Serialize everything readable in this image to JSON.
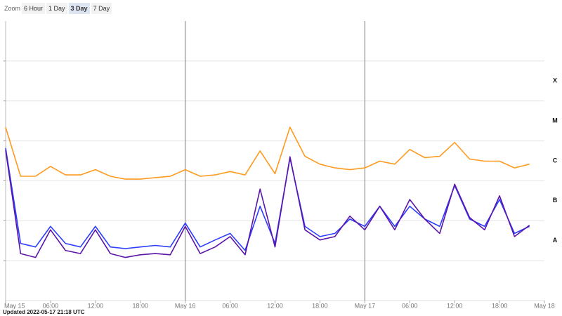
{
  "zoom": {
    "label": "Zoom",
    "buttons": [
      "6 Hour",
      "1 Day",
      "3 Day",
      "7 Day"
    ],
    "selected": 2
  },
  "chart_data": {
    "type": "line",
    "log_scale": true,
    "x": [
      "May 15 00:00",
      "May 15 02:00",
      "May 15 04:00",
      "May 15 06:00",
      "May 15 08:00",
      "May 15 10:00",
      "May 15 12:00",
      "May 15 14:00",
      "May 15 16:00",
      "May 15 18:00",
      "May 15 20:00",
      "May 15 22:00",
      "May 16 00:00",
      "May 16 02:00",
      "May 16 04:00",
      "May 16 06:00",
      "May 16 08:00",
      "May 16 10:00",
      "May 16 12:00",
      "May 16 14:00",
      "May 16 16:00",
      "May 16 18:00",
      "May 16 20:00",
      "May 16 22:00",
      "May 17 00:00",
      "May 17 02:00",
      "May 17 04:00",
      "May 17 06:00",
      "May 17 08:00",
      "May 17 10:00",
      "May 17 12:00",
      "May 17 14:00",
      "May 17 16:00",
      "May 17 18:00",
      "May 17 20:00",
      "May 17 22:00"
    ],
    "series": [
      {
        "color": "#ff9a1f",
        "values": [
          2.2e-05,
          1.3e-06,
          1.3e-06,
          2.3e-06,
          1.4e-06,
          1.4e-06,
          1.9e-06,
          1.3e-06,
          1.1e-06,
          1.1e-06,
          1.2e-06,
          1.3e-06,
          1.9e-06,
          1.3e-06,
          1.4e-06,
          1.7e-06,
          1.4e-06,
          5.6e-06,
          1.5e-06,
          2.2e-05,
          4.1e-06,
          2.6e-06,
          2.1e-06,
          1.9e-06,
          2.1e-06,
          3.1e-06,
          2.6e-06,
          6.1e-06,
          3.8e-06,
          4.1e-06,
          9.1e-06,
          3.5e-06,
          3.1e-06,
          3.1e-06,
          2.1e-06,
          2.6e-06
        ]
      },
      {
        "color": "#2b3cff",
        "values": [
          6.6e-06,
          2.7e-08,
          2.2e-08,
          7.2e-08,
          2.7e-08,
          2.2e-08,
          7.2e-08,
          2.2e-08,
          2e-08,
          2.2e-08,
          2.4e-08,
          2.2e-08,
          8.7e-08,
          2.2e-08,
          3.3e-08,
          4.8e-08,
          1.8e-08,
          2.3e-07,
          2.7e-08,
          3.7e-06,
          7.2e-08,
          4e-08,
          4.8e-08,
          1.1e-07,
          7.2e-08,
          2.3e-07,
          7.2e-08,
          2.3e-07,
          1.1e-07,
          7.2e-08,
          7.6e-07,
          1.1e-07,
          7.2e-08,
          3.4e-07,
          4.8e-08,
          7.2e-08
        ]
      },
      {
        "color": "#5b14a8",
        "values": [
          5.9e-06,
          1.5e-08,
          1.2e-08,
          5.9e-08,
          1.8e-08,
          1.5e-08,
          5.9e-08,
          1.5e-08,
          1.2e-08,
          1.4e-08,
          1.5e-08,
          1.4e-08,
          7.2e-08,
          1.5e-08,
          2.2e-08,
          4e-08,
          1.4e-08,
          6.2e-07,
          2.2e-08,
          4e-06,
          5.9e-08,
          3.3e-08,
          4e-08,
          1.3e-07,
          5.9e-08,
          2.3e-07,
          5.9e-08,
          3.4e-07,
          1.1e-07,
          4.8e-08,
          8.2e-07,
          1.2e-07,
          5.9e-08,
          4.2e-07,
          4e-08,
          7.7e-08
        ]
      }
    ],
    "xlim": [
      "May 15 00:00",
      "May 18 00:00"
    ],
    "xticks": [
      {
        "value": "May 15 00:00",
        "label": "May 15"
      },
      {
        "value": "May 15 06:00",
        "label": "06:00"
      },
      {
        "value": "May 15 12:00",
        "label": "12:00"
      },
      {
        "value": "May 15 18:00",
        "label": "18:00"
      },
      {
        "value": "May 16 00:00",
        "label": "May 16"
      },
      {
        "value": "May 16 06:00",
        "label": "06:00"
      },
      {
        "value": "May 16 12:00",
        "label": "12:00"
      },
      {
        "value": "May 16 18:00",
        "label": "18:00"
      },
      {
        "value": "May 17 00:00",
        "label": "May 17"
      },
      {
        "value": "May 17 06:00",
        "label": "06:00"
      },
      {
        "value": "May 17 12:00",
        "label": "12:00"
      },
      {
        "value": "May 17 18:00",
        "label": "18:00"
      },
      {
        "value": "May 18 00:00",
        "label": "May 18"
      }
    ],
    "ylim": [
      1e-09,
      0.01
    ],
    "yticks": [
      {
        "value": 3.16e-08,
        "label": "A"
      },
      {
        "value": 3.16e-07,
        "label": "B"
      },
      {
        "value": 3.16e-06,
        "label": "C"
      },
      {
        "value": 3.16e-05,
        "label": "M"
      },
      {
        "value": 0.000316,
        "label": "X"
      }
    ],
    "ygrid": [
      1e-08,
      1e-07,
      1e-06,
      1e-05,
      0.0001,
      0.001
    ]
  },
  "footer": "Updated 2022-05-17 21:18 UTC"
}
